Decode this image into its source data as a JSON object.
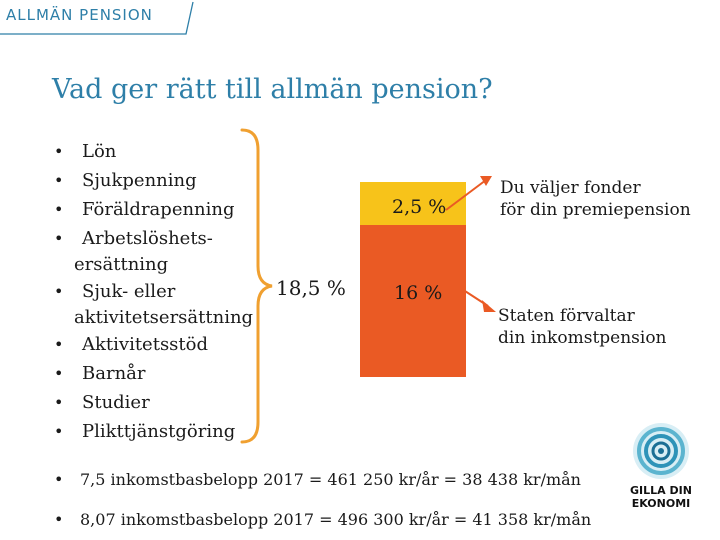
{
  "header": {
    "label": "ALLMÄN PENSION"
  },
  "title": "Vad ger rätt till allmän pension?",
  "qualifications": [
    {
      "label": "Lön",
      "cont": ""
    },
    {
      "label": "Sjukpenning",
      "cont": ""
    },
    {
      "label": "Föräldrapenning",
      "cont": ""
    },
    {
      "label": "Arbetslöshets-",
      "cont": "ersättning"
    },
    {
      "label": "Sjuk- eller",
      "cont": "aktivitetsersättning"
    },
    {
      "label": "Aktivitetsstöd",
      "cont": ""
    },
    {
      "label": "Barnår",
      "cont": ""
    },
    {
      "label": "Studier",
      "cont": ""
    },
    {
      "label": "Plikttjänstgöring",
      "cont": ""
    }
  ],
  "total_percent": "18,5 %",
  "bar": {
    "premie_percent": "2,5 %",
    "inkomst_percent": "16 %",
    "premie_color": "#f7c31a",
    "inkomst_color": "#ea5a24"
  },
  "notes": {
    "premie_line1": "Du väljer fonder",
    "premie_line2": "för din premiepension",
    "inkomst_line1": "Staten förvaltar",
    "inkomst_line2": "din inkomstpension"
  },
  "footnotes": [
    "7,5 inkomstbasbelopp 2017 = 461 250 kr/år = 38 438 kr/mån",
    "8,07 inkomstbasbelopp  2017 = 496 300 kr/år = 41 358 kr/mån"
  ],
  "logo": {
    "line1": "GILLA DIN",
    "line2": "EKONOMI"
  },
  "colors": {
    "accent": "#2e7fa8",
    "brace": "#f0a030",
    "arrow": "#ea5a24"
  }
}
